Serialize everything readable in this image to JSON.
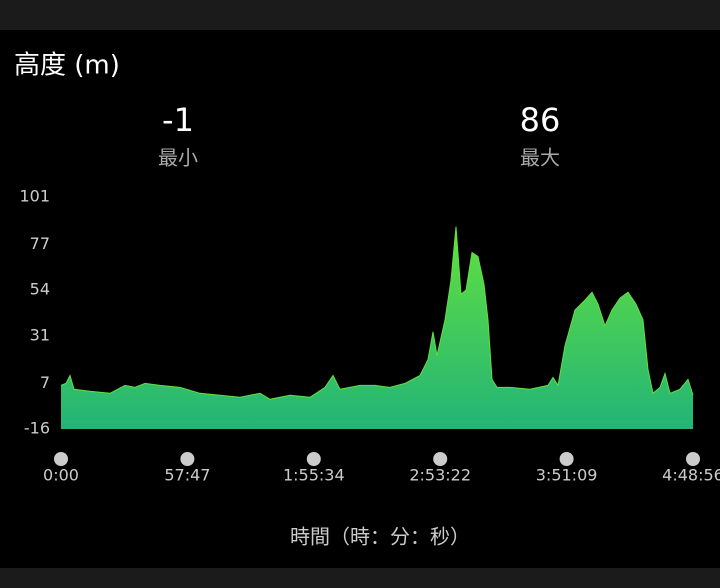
{
  "header": {
    "title": "高度 (m)"
  },
  "stats": [
    {
      "value": -1,
      "label": "最小"
    },
    {
      "value": 86,
      "label": "最大"
    }
  ],
  "chart_data": {
    "type": "area",
    "x_label": "時間（時：分：秒）",
    "x": [
      0,
      137,
      247,
      357,
      796,
      1344,
      1756,
      2030,
      2304,
      2715,
      3264,
      3813,
      4361,
      4910,
      5459,
      5733,
      6282,
      6830,
      7242,
      7461,
      7653,
      8202,
      8613,
      9024,
      9436,
      9847,
      10067,
      10204,
      10314,
      10533,
      10698,
      10835,
      10972,
      11109,
      11274,
      11438,
      11603,
      11713,
      11822,
      11960,
      12316,
      12865,
      13359,
      13496,
      13633,
      13825,
      14099,
      14373,
      14565,
      14730,
      14922,
      15114,
      15333,
      15553,
      15772,
      15964,
      16101,
      16238,
      16430,
      16567,
      16704,
      16978,
      17198,
      17336
    ],
    "values": [
      6,
      7,
      11,
      4,
      3,
      2,
      6,
      5,
      7,
      6,
      5,
      2,
      1,
      0,
      2,
      -1,
      1,
      0,
      5,
      11,
      4,
      6,
      6,
      5,
      7,
      11,
      19,
      33,
      21,
      39,
      59,
      86,
      52,
      54,
      73,
      71,
      57,
      39,
      9,
      5,
      5,
      4,
      6,
      10,
      6,
      26,
      44,
      49,
      53,
      47,
      36,
      44,
      50,
      53,
      47,
      39,
      14,
      2,
      5,
      12,
      2,
      4,
      9,
      1
    ],
    "xlim": [
      0,
      17336
    ],
    "xticks": [
      {
        "value": 0,
        "label": "0:00"
      },
      {
        "value": 3467,
        "label": "57:47"
      },
      {
        "value": 6934,
        "label": "1:55:34"
      },
      {
        "value": 10402,
        "label": "2:53:22"
      },
      {
        "value": 13869,
        "label": "3:51:09"
      },
      {
        "value": 17336,
        "label": "4:48:56"
      }
    ],
    "ylim": [
      -16,
      101
    ],
    "yticks": [
      101,
      77,
      54,
      31,
      7,
      -16
    ],
    "colors": [
      "#62e03f",
      "#23b477"
    ]
  }
}
